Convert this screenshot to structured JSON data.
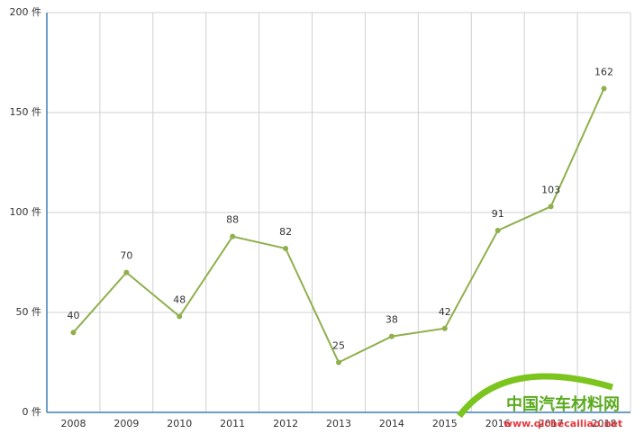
{
  "chart_data": {
    "type": "line",
    "categories": [
      "2008",
      "2009",
      "2010",
      "2011",
      "2012",
      "2013",
      "2014",
      "2015",
      "2016",
      "2017",
      "2018"
    ],
    "values": [
      40,
      70,
      48,
      88,
      82,
      25,
      38,
      42,
      91,
      103,
      162
    ],
    "color": "#8fb04c",
    "ylim": [
      0,
      200
    ],
    "yticks": [
      {
        "value": 0,
        "label": "0 件"
      },
      {
        "value": 50,
        "label": "50 件"
      },
      {
        "value": 100,
        "label": "100 件"
      },
      {
        "value": 150,
        "label": "150 件"
      },
      {
        "value": 200,
        "label": "200 件"
      }
    ],
    "grid": true
  },
  "watermark": {
    "title": "中国汽车材料网",
    "url": "www.qichecailiao.net"
  }
}
